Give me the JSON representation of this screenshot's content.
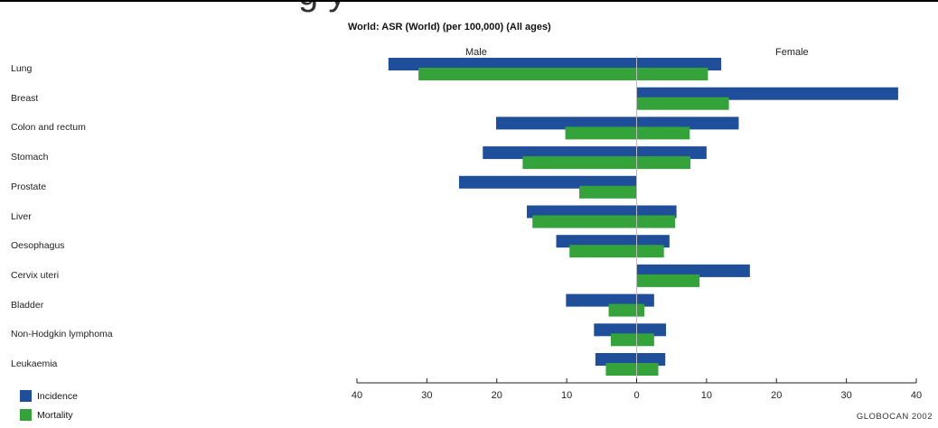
{
  "banner_text": "g y",
  "chart_data": {
    "type": "bar",
    "title": "World: ASR (World) (per 100,000) (All ages)",
    "left_label": "Male",
    "right_label": "Female",
    "categories": [
      "Lung",
      "Breast",
      "Colon and rectum",
      "Stomach",
      "Prostate",
      "Liver",
      "Oesophagus",
      "Cervix uteri",
      "Bladder",
      "Non-Hodgkin lymphoma",
      "Leukaemia"
    ],
    "series": [
      {
        "name": "Incidence",
        "color": "#1f4e9a",
        "male": [
          35.5,
          0,
          20.1,
          22.0,
          25.4,
          15.7,
          11.5,
          0,
          10.1,
          6.1,
          5.9
        ],
        "female": [
          12.1,
          37.4,
          14.6,
          10.0,
          0,
          5.7,
          4.7,
          16.2,
          2.5,
          4.2,
          4.1
        ]
      },
      {
        "name": "Mortality",
        "color": "#33a33a",
        "male": [
          31.2,
          0,
          10.2,
          16.3,
          8.2,
          14.9,
          9.6,
          0,
          4.0,
          3.7,
          4.4
        ],
        "female": [
          10.2,
          13.2,
          7.6,
          7.7,
          0,
          5.5,
          3.9,
          9.0,
          1.1,
          2.5,
          3.1
        ]
      }
    ],
    "xlim": [
      -40,
      40
    ],
    "xticks": [
      "40",
      "30",
      "20",
      "10",
      "0",
      "10",
      "20",
      "30",
      "40"
    ],
    "legend_placement": "bottom-left",
    "credit": "GLOBOCAN 2002"
  }
}
